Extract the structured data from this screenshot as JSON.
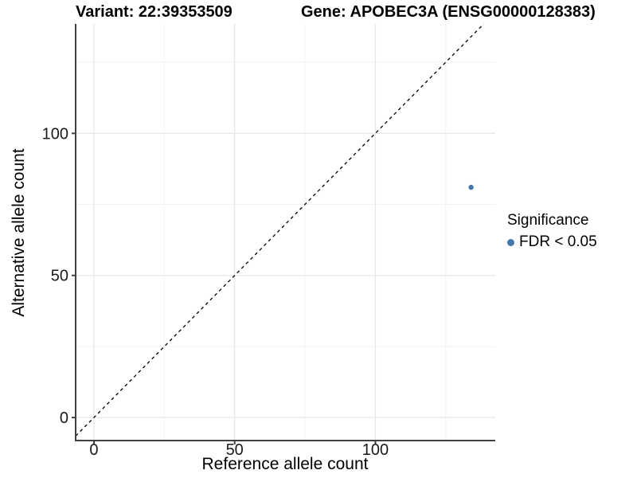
{
  "header": {
    "variant_title": "Variant: 22:39353509",
    "gene_title": "Gene: APOBEC3A (ENSG00000128383)"
  },
  "chart_data": {
    "type": "scatter",
    "title": "Variant: 22:39353509 — Gene: APOBEC3A (ENSG00000128383)",
    "xlabel": "Reference allele count",
    "ylabel": "Alternative allele count",
    "xlim": [
      -6.5,
      142.6
    ],
    "ylim": [
      -8.1,
      138.5
    ],
    "x_ticks": [
      0,
      50,
      100
    ],
    "y_ticks": [
      0,
      50,
      100
    ],
    "x_minor_gridlines": [
      25,
      75,
      125
    ],
    "y_minor_gridlines": [
      25,
      75,
      125
    ],
    "grid": "on",
    "series": [
      {
        "name": "FDR < 0.05",
        "color": "#4478ab",
        "marker": "circle",
        "points": [
          {
            "x": 134,
            "y": 81
          }
        ]
      }
    ],
    "reference_line": {
      "type": "identity y = x",
      "style": "dashed",
      "color": "#000000",
      "x1": -6.5,
      "y1": -6.5,
      "x2": 138.5,
      "y2": 138.5
    },
    "axis_color": "#404040",
    "gridline_color": "#e7e7e7",
    "minor_gridline_color": "#f2f2f2",
    "tick_label_color": "#1a1a1a",
    "legend_position": "right"
  },
  "legend": {
    "title": "Significance",
    "items": [
      {
        "label": "FDR < 0.05",
        "color": "#4478ab",
        "marker": "circle"
      }
    ]
  }
}
